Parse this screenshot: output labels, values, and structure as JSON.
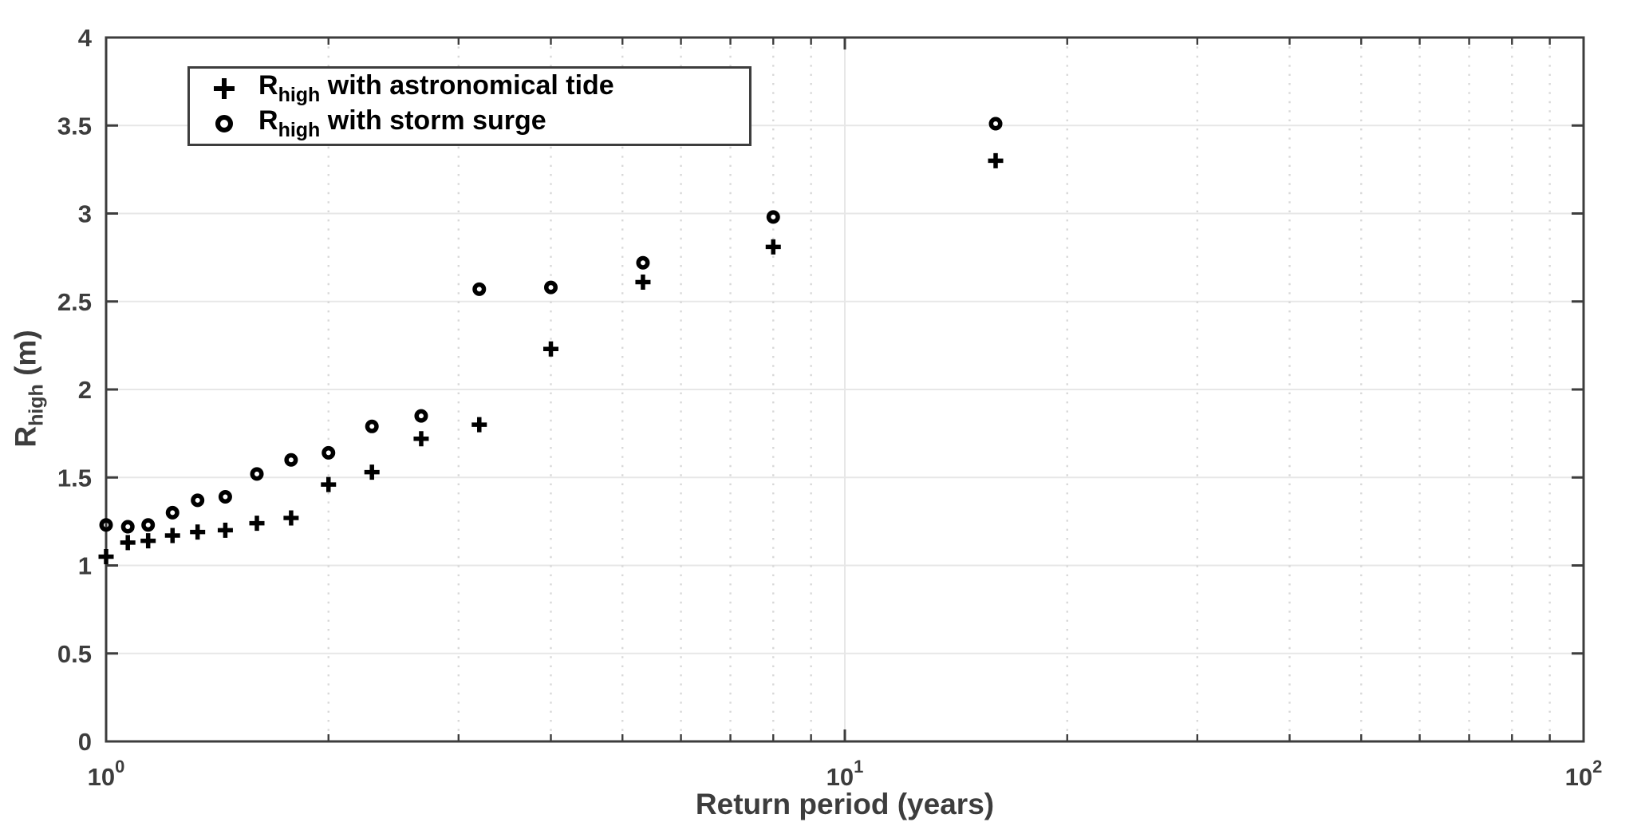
{
  "chart_data": {
    "type": "scatter",
    "title": "",
    "xlabel": "Return period (years)",
    "ylabel": {
      "prefix": "R",
      "sub": "high",
      "suffix": " (m)"
    },
    "x_scale": "log10",
    "xlim": [
      1,
      100
    ],
    "ylim": [
      0,
      4
    ],
    "grid": {
      "major": true,
      "minor": true
    },
    "legend_position": "top-left",
    "y_ticks": [
      0,
      0.5,
      1,
      1.5,
      2,
      2.5,
      3,
      3.5,
      4
    ],
    "y_tick_labels": [
      "0",
      "0.5",
      "1",
      "1.5",
      "2",
      "2.5",
      "3",
      "3.5",
      "4"
    ],
    "x_major_ticks": [
      {
        "value": 1,
        "base": "10",
        "exp": "0"
      },
      {
        "value": 10,
        "base": "10",
        "exp": "1"
      },
      {
        "value": 100,
        "base": "10",
        "exp": "2"
      }
    ],
    "x_minor_ticks": [
      2,
      3,
      4,
      5,
      6,
      7,
      8,
      9,
      20,
      30,
      40,
      50,
      60,
      70,
      80,
      90
    ],
    "x": [
      1.0,
      1.07,
      1.14,
      1.23,
      1.33,
      1.45,
      1.6,
      1.78,
      2.0,
      2.29,
      2.67,
      3.2,
      4.0,
      5.33,
      8.0,
      16.0
    ],
    "series": [
      {
        "name": "R_high with astronomical tide",
        "marker": "plus",
        "label": {
          "prefix": "R",
          "sub": "high",
          "suffix": " with astronomical tide"
        },
        "values": [
          1.05,
          1.13,
          1.14,
          1.17,
          1.19,
          1.2,
          1.24,
          1.27,
          1.46,
          1.53,
          1.72,
          1.8,
          2.23,
          2.61,
          2.81,
          3.3
        ]
      },
      {
        "name": "R_high with storm surge",
        "marker": "circle",
        "label": {
          "prefix": "R",
          "sub": "high",
          "suffix": " with storm surge"
        },
        "values": [
          1.23,
          1.22,
          1.23,
          1.3,
          1.37,
          1.39,
          1.52,
          1.6,
          1.64,
          1.79,
          1.85,
          2.57,
          2.58,
          2.72,
          2.98,
          3.51
        ]
      }
    ],
    "colors": {
      "marker": "#000000",
      "axis": "#3d3d3d",
      "tick_label": "#3d3d3d",
      "grid_major": "#e7e7e7",
      "grid_minor": "#d8d8d8",
      "background": "#ffffff"
    }
  }
}
